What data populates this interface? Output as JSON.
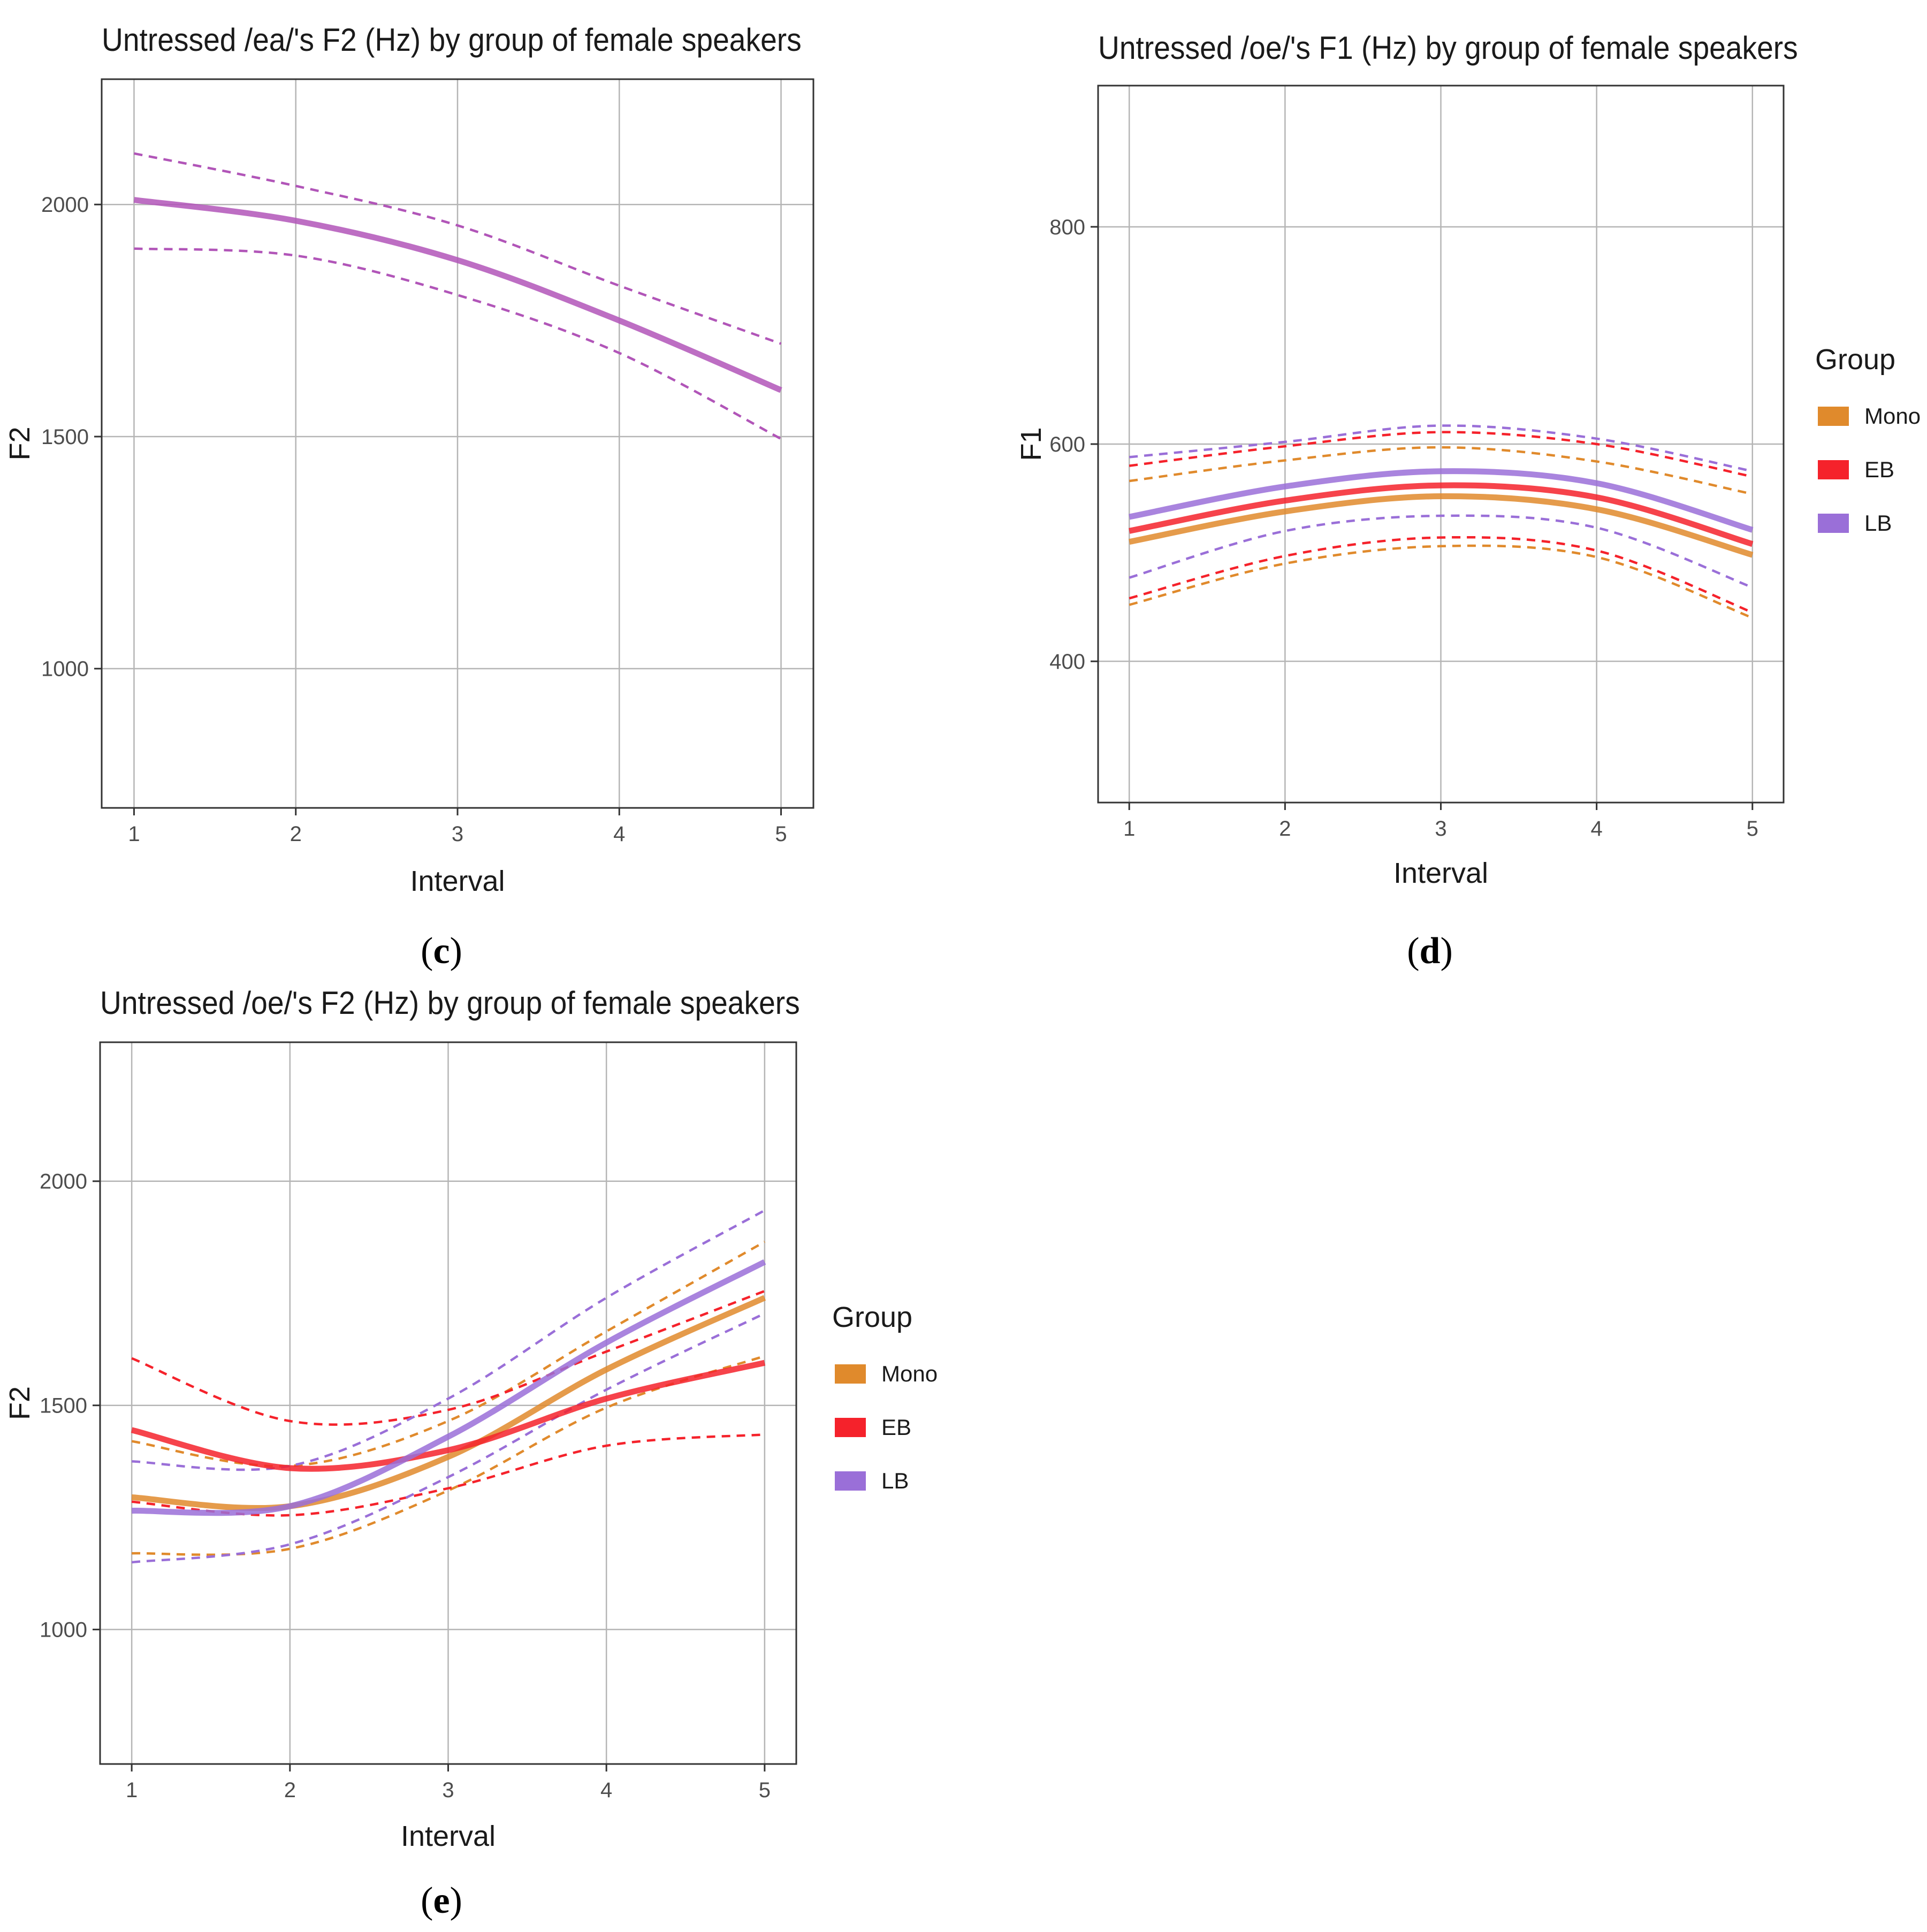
{
  "panels": [
    {
      "id": "c",
      "label_open": "(",
      "label_letter": "c",
      "label_close": ")"
    },
    {
      "id": "d",
      "label_open": "(",
      "label_letter": "d",
      "label_close": ")"
    },
    {
      "id": "e",
      "label_open": "(",
      "label_letter": "e",
      "label_close": ")"
    }
  ],
  "colors": {
    "panel_grid": "#b5b5b5",
    "panel_border": "#333333",
    "axis_text": "#4d4d4d",
    "title_text": "#1a1a1a"
  },
  "chart_data": [
    {
      "type": "line",
      "title": "Untressed /ea/'s F2 (Hz) by group of female speakers",
      "xlabel": "Interval",
      "ylabel": "F2",
      "xlim": [
        0.8,
        5.2
      ],
      "ylim": [
        700,
        2270
      ],
      "x_ticks": [
        1,
        2,
        3,
        4,
        5
      ],
      "y_ticks": [
        1000,
        1500,
        2000
      ],
      "grid": true,
      "legend": null,
      "series": [
        {
          "color": "#b155b8",
          "x": [
            1,
            2,
            3,
            4,
            5
          ],
          "values": [
            2010,
            1965,
            1880,
            1750,
            1600
          ],
          "ci_lower": [
            1905,
            1890,
            1805,
            1680,
            1495
          ],
          "ci_upper": [
            2110,
            2040,
            1955,
            1825,
            1700
          ]
        }
      ]
    },
    {
      "type": "line",
      "title": "Untressed /oe/'s F1 (Hz) by group of female speakers",
      "xlabel": "Interval",
      "ylabel": "F1",
      "xlim": [
        0.8,
        5.2
      ],
      "ylim": [
        270,
        930
      ],
      "x_ticks": [
        1,
        2,
        3,
        4,
        5
      ],
      "y_ticks": [
        400,
        600,
        800
      ],
      "grid": true,
      "legend": {
        "title": "Group",
        "position": "right",
        "entries": [
          "Mono",
          "EB",
          "LB"
        ]
      },
      "series": [
        {
          "name": "Mono",
          "color": "#e08a2c",
          "x": [
            1,
            2,
            3,
            4,
            5
          ],
          "values": [
            510,
            538,
            552,
            540,
            498
          ],
          "ci_lower": [
            452,
            490,
            506,
            496,
            440
          ],
          "ci_upper": [
            566,
            585,
            597,
            584,
            554
          ]
        },
        {
          "name": "EB",
          "color": "#f5222b",
          "x": [
            1,
            2,
            3,
            4,
            5
          ],
          "values": [
            520,
            548,
            562,
            551,
            508
          ],
          "ci_lower": [
            458,
            497,
            514,
            502,
            445
          ],
          "ci_upper": [
            580,
            598,
            611,
            600,
            570
          ]
        },
        {
          "name": "LB",
          "color": "#9a6fd8",
          "x": [
            1,
            2,
            3,
            4,
            5
          ],
          "values": [
            533,
            561,
            575,
            564,
            521
          ],
          "ci_lower": [
            477,
            520,
            534,
            523,
            468
          ],
          "ci_upper": [
            588,
            602,
            617,
            605,
            575
          ]
        }
      ]
    },
    {
      "type": "line",
      "title": "Untressed /oe/'s F2 (Hz) by group of female speakers",
      "xlabel": "Interval",
      "ylabel": "F2",
      "xlim": [
        0.8,
        5.2
      ],
      "ylim": [
        700,
        2310
      ],
      "x_ticks": [
        1,
        2,
        3,
        4,
        5
      ],
      "y_ticks": [
        1000,
        1500,
        2000
      ],
      "grid": true,
      "legend": {
        "title": "Group",
        "position": "right",
        "entries": [
          "Mono",
          "EB",
          "LB"
        ]
      },
      "series": [
        {
          "name": "Mono",
          "color": "#e08a2c",
          "x": [
            1,
            2,
            3,
            4,
            5
          ],
          "values": [
            1295,
            1275,
            1385,
            1580,
            1740
          ],
          "ci_lower": [
            1170,
            1180,
            1310,
            1495,
            1610
          ],
          "ci_upper": [
            1420,
            1365,
            1465,
            1665,
            1865
          ]
        },
        {
          "name": "EB",
          "color": "#f5222b",
          "x": [
            1,
            2,
            3,
            4,
            5
          ],
          "values": [
            1445,
            1360,
            1400,
            1515,
            1595
          ],
          "ci_lower": [
            1285,
            1255,
            1315,
            1410,
            1435
          ],
          "ci_upper": [
            1605,
            1465,
            1490,
            1620,
            1755
          ]
        },
        {
          "name": "LB",
          "color": "#9a6fd8",
          "x": [
            1,
            2,
            3,
            4,
            5
          ],
          "values": [
            1265,
            1275,
            1430,
            1640,
            1820
          ],
          "ci_lower": [
            1150,
            1190,
            1340,
            1535,
            1705
          ],
          "ci_upper": [
            1375,
            1365,
            1515,
            1740,
            1935
          ]
        }
      ]
    }
  ]
}
